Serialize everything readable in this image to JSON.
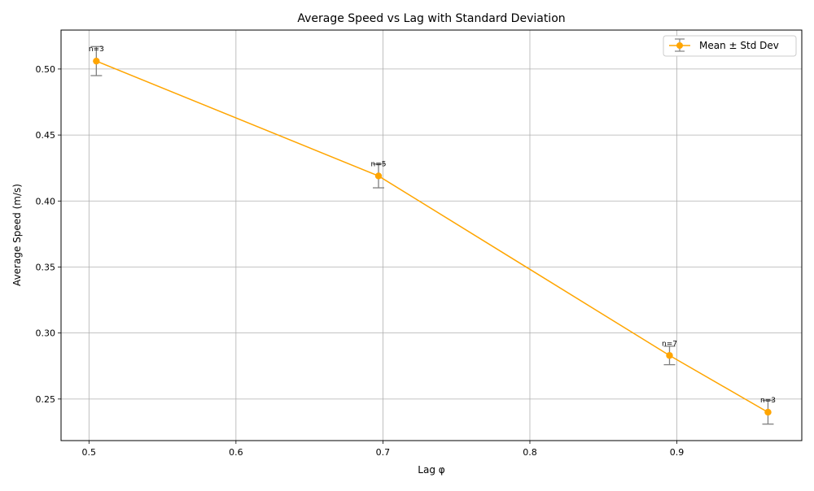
{
  "chart_data": {
    "type": "line",
    "title": "Average Speed vs Lag with Standard Deviation",
    "xlabel": "Lag φ",
    "ylabel": "Average Speed (m/s)",
    "xlim": [
      0.481,
      0.985
    ],
    "ylim": [
      0.2185,
      0.5295
    ],
    "xticks": [
      0.5,
      0.6,
      0.7,
      0.8,
      0.9
    ],
    "xtick_labels": [
      "0.5",
      "0.6",
      "0.7",
      "0.8",
      "0.9"
    ],
    "yticks": [
      0.25,
      0.3,
      0.35,
      0.4,
      0.45,
      0.5
    ],
    "ytick_labels": [
      "0.25",
      "0.30",
      "0.35",
      "0.40",
      "0.45",
      "0.50"
    ],
    "grid": true,
    "legend_position": "top-right",
    "series": [
      {
        "name": "Mean ± Std Dev",
        "color": "#FFA500",
        "errorbar_color": "#808080",
        "x": [
          0.505,
          0.697,
          0.895,
          0.962
        ],
        "y": [
          0.506,
          0.419,
          0.283,
          0.24
        ],
        "std": [
          0.011,
          0.009,
          0.007,
          0.009
        ],
        "labels": [
          "n=3",
          "n=5",
          "n=7",
          "n=3"
        ]
      }
    ]
  }
}
